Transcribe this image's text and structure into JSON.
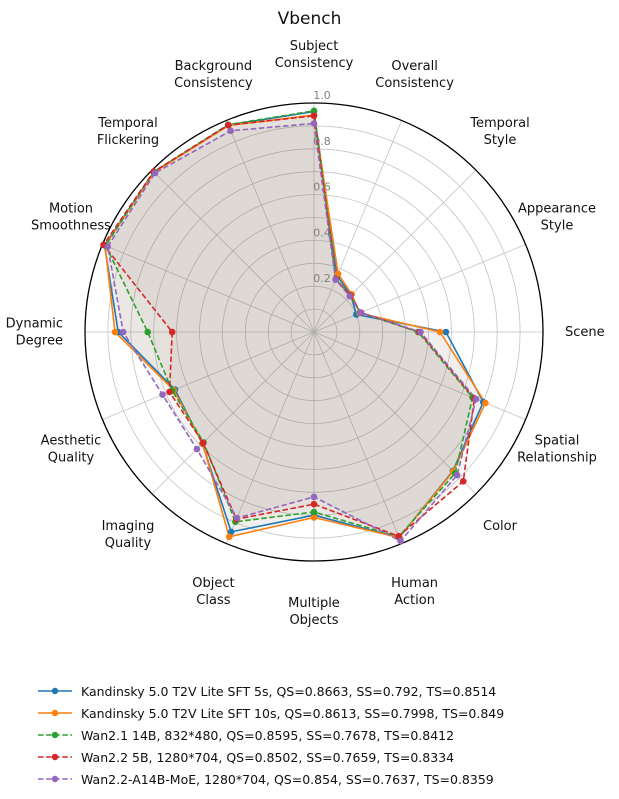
{
  "title": "Vbench",
  "chart_data": {
    "type": "radar",
    "title": "Vbench",
    "rmax": 1.0,
    "grid_step": 0.1,
    "tick_values": [
      0.2,
      0.4,
      0.6,
      0.8,
      1.0
    ],
    "tick_labels": [
      "0.2",
      "0.4",
      "0.6",
      "0.8",
      "1.0"
    ],
    "legend_position": "bottom-left",
    "categories": [
      "Subject\nConsistency",
      "Overall\nConsistency",
      "Temporal\nStyle",
      "Appearance\nStyle",
      "Scene",
      "Spatial\nRelationship",
      "Color",
      "Human\nAction",
      "Multiple\nObjects",
      "Object\nClass",
      "Imaging\nQuality",
      "Aesthetic\nQuality",
      "Dynamic\nDegree",
      "Motion\nSmoothness",
      "Temporal\nFlickering",
      "Background\nConsistency"
    ],
    "series": [
      {
        "name": "Kandinsky 5.0 T2V Lite SFT 5s, QS=0.8663, SS=0.792, TS=0.8514",
        "color": "#1f77b4",
        "dashed": false,
        "values": [
          0.963,
          0.265,
          0.228,
          0.2,
          0.576,
          0.8,
          0.858,
          0.972,
          0.8,
          0.945,
          0.69,
          0.657,
          0.855,
          0.99,
          0.988,
          0.978
        ]
      },
      {
        "name": "Kandinsky 5.0 T2V Lite SFT 10s, QS=0.8613, SS=0.7998, TS=0.849",
        "color": "#ff7f0e",
        "dashed": false,
        "values": [
          0.947,
          0.275,
          0.233,
          0.216,
          0.55,
          0.81,
          0.86,
          0.972,
          0.81,
          0.968,
          0.688,
          0.663,
          0.869,
          0.988,
          0.987,
          0.976
        ]
      },
      {
        "name": "Wan2.1 14B, 832*480, QS=0.8595, SS=0.7678, TS=0.8412",
        "color": "#2ca02c",
        "dashed": true,
        "values": [
          0.966,
          0.25,
          0.225,
          0.22,
          0.455,
          0.749,
          0.872,
          0.968,
          0.786,
          0.897,
          0.682,
          0.67,
          0.726,
          0.985,
          0.99,
          0.98
        ]
      },
      {
        "name": "Wan2.2 5B, 1280*704, QS=0.8502, SS=0.7659, TS=0.8334",
        "color": "#d62728",
        "dashed": true,
        "values": [
          0.944,
          0.25,
          0.225,
          0.222,
          0.46,
          0.758,
          0.922,
          0.965,
          0.752,
          0.885,
          0.685,
          0.683,
          0.619,
          0.995,
          0.99,
          0.978
        ]
      },
      {
        "name": "Wan2.2-A14B-MoE, 1280*704, QS=0.854, SS=0.7637, TS=0.8359",
        "color": "#9467bd",
        "dashed": true,
        "values": [
          0.911,
          0.247,
          0.221,
          0.22,
          0.465,
          0.766,
          0.884,
          0.988,
          0.72,
          0.879,
          0.723,
          0.716,
          0.833,
          0.975,
          0.982,
          0.951
        ]
      }
    ]
  }
}
